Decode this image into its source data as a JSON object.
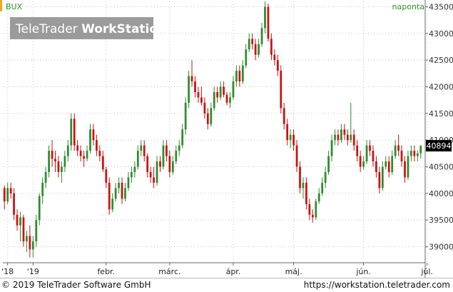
{
  "header": {
    "symbol": "BUX",
    "period": "naponta",
    "logo_brand": "TeleTrader",
    "logo_product": "WorkStation",
    "accent_color": "#f5a623"
  },
  "price_tag": "40894",
  "footer": {
    "copyright": "© 2019 TeleTrader Software GmbH",
    "url": "https://workstation.teletrader.com"
  },
  "chart_data": {
    "type": "candlestick",
    "title": "",
    "symbol": "BUX",
    "interval": "naponta",
    "up_color": "#2e8b2e",
    "down_color": "#cc1111",
    "grid": true,
    "ylim": [
      38700,
      43600
    ],
    "yticks": [
      {
        "value": 39000,
        "label": "39000"
      },
      {
        "value": 39500,
        "label": "39500"
      },
      {
        "value": 40000,
        "label": "40000"
      },
      {
        "value": 40500,
        "label": "40500"
      },
      {
        "value": 41000,
        "label": "41000"
      },
      {
        "value": 41500,
        "label": "41500"
      },
      {
        "value": 42000,
        "label": "42000"
      },
      {
        "value": 42500,
        "label": "42500"
      },
      {
        "value": 43000,
        "label": "43000"
      },
      {
        "value": 43500,
        "label": "43500"
      }
    ],
    "xticks": [
      {
        "index": 1,
        "label": "'18"
      },
      {
        "index": 9,
        "label": "'19"
      },
      {
        "index": 32,
        "label": "febr."
      },
      {
        "index": 52,
        "label": "márc."
      },
      {
        "index": 72,
        "label": "ápr."
      },
      {
        "index": 91,
        "label": "máj."
      },
      {
        "index": 113,
        "label": "jún."
      },
      {
        "index": 133,
        "label": "júl."
      }
    ],
    "last_price": 40894,
    "candles": [
      [
        40100,
        40150,
        39700,
        39850
      ],
      [
        39850,
        40200,
        39800,
        40100
      ],
      [
        40100,
        40200,
        39900,
        40000
      ],
      [
        40000,
        40100,
        39500,
        39600
      ],
      [
        39600,
        39700,
        39300,
        39400
      ],
      [
        39400,
        39650,
        39100,
        39550
      ],
      [
        39550,
        39600,
        39000,
        39100
      ],
      [
        39100,
        39300,
        38900,
        39200
      ],
      [
        39200,
        39400,
        38800,
        38950
      ],
      [
        38950,
        39200,
        38800,
        39100
      ],
      [
        39100,
        39600,
        39000,
        39500
      ],
      [
        39500,
        40000,
        39400,
        39950
      ],
      [
        39950,
        40300,
        39800,
        40200
      ],
      [
        40200,
        40500,
        40100,
        40400
      ],
      [
        40400,
        40900,
        40300,
        40800
      ],
      [
        40800,
        41000,
        40500,
        40650
      ],
      [
        40650,
        40800,
        40400,
        40600
      ],
      [
        40600,
        40700,
        40300,
        40400
      ],
      [
        40400,
        40600,
        40200,
        40500
      ],
      [
        40500,
        40800,
        40400,
        40700
      ],
      [
        40700,
        41000,
        40600,
        40900
      ],
      [
        40900,
        41500,
        40800,
        41400
      ],
      [
        41400,
        41500,
        40800,
        40900
      ],
      [
        40900,
        41000,
        40700,
        40800
      ],
      [
        40800,
        40900,
        40600,
        40700
      ],
      [
        40700,
        40800,
        40500,
        40650
      ],
      [
        40650,
        40900,
        40600,
        40800
      ],
      [
        40800,
        41300,
        40750,
        41200
      ],
      [
        41200,
        41300,
        40900,
        41000
      ],
      [
        41000,
        41100,
        40700,
        40800
      ],
      [
        40800,
        40900,
        40600,
        40700
      ],
      [
        40700,
        40800,
        40400,
        40450
      ],
      [
        40450,
        40500,
        40100,
        40200
      ],
      [
        40200,
        40300,
        39600,
        39700
      ],
      [
        39700,
        40000,
        39650,
        39900
      ],
      [
        39900,
        40200,
        39850,
        40100
      ],
      [
        40100,
        40300,
        40000,
        40200
      ],
      [
        40200,
        40300,
        39800,
        39900
      ],
      [
        39900,
        40200,
        39850,
        40100
      ],
      [
        40100,
        40400,
        40050,
        40300
      ],
      [
        40300,
        40500,
        40200,
        40400
      ],
      [
        40400,
        40600,
        40300,
        40500
      ],
      [
        40500,
        40900,
        40450,
        40800
      ],
      [
        40800,
        41000,
        40700,
        40900
      ],
      [
        40900,
        41000,
        40600,
        40700
      ],
      [
        40700,
        40750,
        40300,
        40400
      ],
      [
        40400,
        40500,
        40200,
        40300
      ],
      [
        40300,
        40500,
        40100,
        40200
      ],
      [
        40200,
        40700,
        40150,
        40600
      ],
      [
        40600,
        40700,
        40400,
        40500
      ],
      [
        40500,
        41000,
        40450,
        40900
      ],
      [
        40900,
        41000,
        40600,
        40700
      ],
      [
        40700,
        40800,
        40300,
        40400
      ],
      [
        40400,
        40700,
        40350,
        40600
      ],
      [
        40600,
        40900,
        40550,
        40800
      ],
      [
        40800,
        41000,
        40700,
        40900
      ],
      [
        40900,
        41300,
        40850,
        41200
      ],
      [
        41200,
        41800,
        41100,
        41700
      ],
      [
        41700,
        42300,
        41600,
        42200
      ],
      [
        42200,
        42500,
        42000,
        42100
      ],
      [
        42100,
        42200,
        41800,
        41900
      ],
      [
        41900,
        42000,
        41700,
        41800
      ],
      [
        41800,
        42000,
        41650,
        41700
      ],
      [
        41700,
        41800,
        41400,
        41500
      ],
      [
        41500,
        41600,
        41200,
        41300
      ],
      [
        41300,
        41700,
        41250,
        41600
      ],
      [
        41600,
        42000,
        41550,
        41900
      ],
      [
        41900,
        42000,
        41700,
        41800
      ],
      [
        41800,
        42100,
        41750,
        42000
      ],
      [
        42000,
        42100,
        41800,
        41850
      ],
      [
        41850,
        41900,
        41650,
        41700
      ],
      [
        41700,
        41900,
        41600,
        41800
      ],
      [
        41800,
        42200,
        41750,
        42100
      ],
      [
        42100,
        42400,
        42000,
        42300
      ],
      [
        42300,
        42400,
        42000,
        42100
      ],
      [
        42100,
        42500,
        42050,
        42400
      ],
      [
        42400,
        42800,
        42350,
        42700
      ],
      [
        42700,
        43000,
        42650,
        42900
      ],
      [
        42900,
        43000,
        42700,
        42800
      ],
      [
        42800,
        42900,
        42500,
        42600
      ],
      [
        42600,
        42900,
        42550,
        42800
      ],
      [
        42800,
        43200,
        42750,
        43100
      ],
      [
        43100,
        43600,
        43000,
        43500
      ],
      [
        43500,
        43560,
        42850,
        42900
      ],
      [
        42900,
        43000,
        42500,
        42600
      ],
      [
        42600,
        42700,
        42400,
        42500
      ],
      [
        42500,
        42600,
        42200,
        42300
      ],
      [
        42300,
        42400,
        41500,
        41600
      ],
      [
        41600,
        41700,
        41200,
        41300
      ],
      [
        41300,
        41400,
        40900,
        41000
      ],
      [
        41000,
        41200,
        40850,
        41100
      ],
      [
        41100,
        41200,
        40800,
        40900
      ],
      [
        40900,
        41000,
        40400,
        40500
      ],
      [
        40500,
        40600,
        40000,
        40100
      ],
      [
        40100,
        40300,
        39900,
        40200
      ],
      [
        40200,
        40300,
        39700,
        39800
      ],
      [
        39800,
        39900,
        39500,
        39600
      ],
      [
        39600,
        39700,
        39450,
        39550
      ],
      [
        39550,
        39900,
        39500,
        39850
      ],
      [
        39850,
        40100,
        39800,
        40000
      ],
      [
        40000,
        40300,
        39950,
        40200
      ],
      [
        40200,
        40500,
        40100,
        40400
      ],
      [
        40400,
        40800,
        40350,
        40700
      ],
      [
        40700,
        41100,
        40600,
        41000
      ],
      [
        41000,
        41200,
        40900,
        41100
      ],
      [
        41100,
        41200,
        40900,
        41000
      ],
      [
        41000,
        41300,
        40950,
        41200
      ],
      [
        41200,
        41300,
        41000,
        41100
      ],
      [
        41100,
        41200,
        40900,
        41000
      ],
      [
        41000,
        41700,
        40950,
        41100
      ],
      [
        41100,
        41200,
        40800,
        40900
      ],
      [
        40900,
        41000,
        40600,
        40700
      ],
      [
        40700,
        40800,
        40400,
        40500
      ],
      [
        40500,
        40700,
        40450,
        40600
      ],
      [
        40600,
        41000,
        40550,
        40900
      ],
      [
        40900,
        41000,
        40700,
        40800
      ],
      [
        40800,
        40900,
        40500,
        40600
      ],
      [
        40600,
        40700,
        40300,
        40400
      ],
      [
        40400,
        40500,
        40000,
        40100
      ],
      [
        40100,
        40600,
        40050,
        40500
      ],
      [
        40500,
        40700,
        40450,
        40600
      ],
      [
        40600,
        40700,
        40300,
        40400
      ],
      [
        40400,
        40800,
        40350,
        40700
      ],
      [
        40700,
        41000,
        40650,
        40900
      ],
      [
        40900,
        41100,
        40700,
        40800
      ],
      [
        40800,
        40900,
        40500,
        40600
      ],
      [
        40600,
        40700,
        40200,
        40300
      ],
      [
        40300,
        40800,
        40250,
        40700
      ],
      [
        40700,
        40900,
        40600,
        40800
      ],
      [
        40800,
        40900,
        40600,
        40700
      ],
      [
        40700,
        40800,
        40600,
        40750
      ],
      [
        40750,
        40900,
        40650,
        40894
      ]
    ]
  }
}
